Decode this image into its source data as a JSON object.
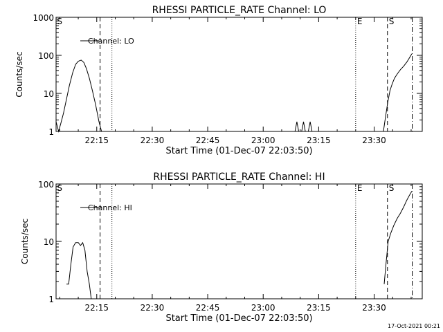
{
  "footer": {
    "timestamp": "17-Oct-2021 00:21"
  },
  "chart_data": [
    {
      "type": "line",
      "title": "RHESSI PARTICLE_RATE Channel: LO",
      "xlabel": "Start Time (01-Dec-07 22:03:50)",
      "ylabel": "Counts/sec",
      "x_unit": "minutes of day (22:15 = 1335)",
      "xlim": [
        1324,
        1423
      ],
      "ylim": [
        1,
        1000
      ],
      "yscale": "log",
      "x_tick_labels": [
        "22:15",
        "22:30",
        "22:45",
        "23:00",
        "23:15",
        "23:30"
      ],
      "x_tick_values": [
        1335,
        1350,
        1365,
        1380,
        1395,
        1410
      ],
      "y_tick_labels": [
        "1",
        "10",
        "100",
        "1000"
      ],
      "y_tick_values": [
        1,
        10,
        100,
        1000
      ],
      "legend": {
        "placement": "top-left",
        "entries": [
          "Channel: LO"
        ]
      },
      "series": [
        {
          "name": "Channel: LO",
          "x": [
            1324.0,
            1324.7,
            1325.4,
            1326.0,
            1326.8,
            1327.6,
            1328.5,
            1329.3,
            1330.0,
            1330.8,
            1331.5,
            1332.2,
            1333.0,
            1333.8,
            1334.7,
            1335.6,
            1336.3
          ],
          "y": [
            1.8,
            1.0,
            1.8,
            3.0,
            7.0,
            16.0,
            35.0,
            58.0,
            70.0,
            75.0,
            65.0,
            45.0,
            25.0,
            12.0,
            5.0,
            1.8,
            0.8
          ]
        },
        {
          "name": "",
          "x": [
            1388.6,
            1389.1,
            1389.6,
            1390.4,
            1390.9,
            1391.4,
            1392.2,
            1392.7,
            1393.2
          ],
          "y": [
            0.8,
            1.8,
            0.8,
            0.8,
            1.8,
            0.8,
            0.8,
            1.8,
            0.8
          ]
        },
        {
          "name": "",
          "x": [
            1412.5,
            1413.1,
            1413.7,
            1414.3,
            1414.9,
            1415.5,
            1416.3,
            1417.1,
            1418.0,
            1418.9,
            1419.6,
            1420.2
          ],
          "y": [
            0.8,
            2.5,
            6.0,
            12.0,
            18.0,
            25.0,
            33.0,
            42.0,
            52.0,
            68.0,
            88.0,
            110.0
          ]
        }
      ],
      "markers": [
        {
          "label": "S",
          "x": 1324.6,
          "style": "none"
        },
        {
          "label": "",
          "x": 1335.9,
          "style": "dashed"
        },
        {
          "label": "",
          "x": 1339.1,
          "style": "dotted"
        },
        {
          "label": "E",
          "x": 1405.0,
          "style": "dotted"
        },
        {
          "label": "S",
          "x": 1413.6,
          "style": "dashed"
        },
        {
          "label": "",
          "x": 1420.3,
          "style": "dash-dot"
        }
      ]
    },
    {
      "type": "line",
      "title": "RHESSI PARTICLE_RATE Channel: HI",
      "xlabel": "Start Time (01-Dec-07 22:03:50)",
      "ylabel": "Counts/sec",
      "x_unit": "minutes of day (22:15 = 1335)",
      "xlim": [
        1324,
        1423
      ],
      "ylim": [
        1,
        100
      ],
      "yscale": "log",
      "x_tick_labels": [
        "22:15",
        "22:30",
        "22:45",
        "23:00",
        "23:15",
        "23:30"
      ],
      "x_tick_values": [
        1335,
        1350,
        1365,
        1380,
        1395,
        1410
      ],
      "y_tick_labels": [
        "1",
        "10",
        "100"
      ],
      "y_tick_values": [
        1,
        10,
        100
      ],
      "legend": {
        "placement": "top-left",
        "entries": [
          "Channel: HI"
        ]
      },
      "series": [
        {
          "name": "Channel: HI",
          "x": [
            1326.8,
            1327.4,
            1328.0,
            1328.6,
            1329.3,
            1330.0,
            1330.6,
            1331.2,
            1331.8,
            1332.4,
            1333.0,
            1333.5
          ],
          "y": [
            1.8,
            1.8,
            4.0,
            8.0,
            9.5,
            9.5,
            8.5,
            9.5,
            7.0,
            3.0,
            1.8,
            0.9
          ]
        },
        {
          "name": "",
          "x": [
            1412.7,
            1413.2,
            1413.8,
            1414.5,
            1415.3,
            1416.2,
            1417.1,
            1418.0,
            1418.8,
            1419.5,
            1420.2
          ],
          "y": [
            1.8,
            4.0,
            10.0,
            14.0,
            19.0,
            25.0,
            31.0,
            40.0,
            52.0,
            63.0,
            75.0
          ]
        }
      ],
      "markers": [
        {
          "label": "S",
          "x": 1324.6,
          "style": "none"
        },
        {
          "label": "",
          "x": 1335.9,
          "style": "dashed"
        },
        {
          "label": "",
          "x": 1339.1,
          "style": "dotted"
        },
        {
          "label": "E",
          "x": 1405.0,
          "style": "dotted"
        },
        {
          "label": "S",
          "x": 1413.6,
          "style": "dashed"
        },
        {
          "label": "",
          "x": 1420.3,
          "style": "dash-dot"
        }
      ]
    }
  ]
}
